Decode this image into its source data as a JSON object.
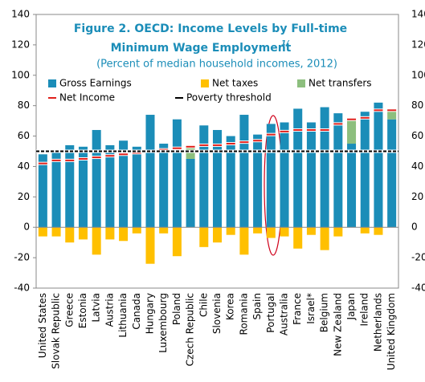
{
  "chart_data": {
    "type": "bar",
    "title": [
      "Figure 2. OECD: Income Levels by Full-time",
      "Minimum Wage Employment"
    ],
    "title_note": "1/",
    "subtitle": "(Percent of median household incomes, 2012)",
    "categories": [
      "United States",
      "Slovak Republic",
      "Greece",
      "Estonia",
      "Latvia",
      "Austria",
      "Lithuania",
      "Canada",
      "Hungary",
      "Luxembourg",
      "Poland",
      "Czech Republic",
      "Chile",
      "Slovenia",
      "Korea",
      "Romania",
      "Spain",
      "Portugal",
      "Australia",
      "France",
      "Israel*",
      "Belgium",
      "New Zealand",
      "Japan",
      "Ireland",
      "Netherlands",
      "United Kingdom"
    ],
    "series": [
      {
        "name": "Gross Earnings",
        "color": "#1b8db8",
        "values": [
          48,
          50,
          54,
          53,
          64,
          54,
          57,
          53,
          74,
          55,
          71,
          45,
          67,
          64,
          60,
          74,
          61,
          68,
          69,
          78,
          69,
          79,
          75,
          55,
          76,
          82,
          71
        ]
      },
      {
        "name": "Net taxes",
        "color": "#ffc000",
        "values": [
          -6,
          -6,
          -10,
          -8,
          -18,
          -8,
          -9,
          -4,
          -24,
          -4,
          -19,
          null,
          -13,
          -10,
          -5,
          -18,
          -4,
          -7,
          -6,
          -14,
          -5,
          -15,
          -6,
          null,
          -4,
          -5,
          null
        ]
      },
      {
        "name": "Net transfers",
        "color": "#8dbf7e",
        "values": [
          null,
          null,
          null,
          null,
          null,
          null,
          null,
          null,
          null,
          null,
          null,
          8,
          null,
          null,
          null,
          null,
          null,
          null,
          null,
          null,
          null,
          null,
          null,
          16,
          null,
          null,
          6
        ]
      },
      {
        "name": "Net Income",
        "color": "#e0201b",
        "values": [
          42,
          44,
          44,
          45,
          46,
          47,
          48,
          49,
          50,
          51,
          52,
          53,
          54,
          54,
          55,
          56,
          57,
          61,
          63,
          64,
          64,
          64,
          68,
          71,
          72,
          77,
          77
        ]
      }
    ],
    "poverty_threshold": {
      "name": "Poverty threshold",
      "value": 50,
      "color": "#000000"
    },
    "ylim": [
      -40,
      140
    ],
    "yticks": [
      -40,
      -20,
      0,
      20,
      40,
      60,
      80,
      100,
      120,
      140
    ],
    "grid": false
  }
}
